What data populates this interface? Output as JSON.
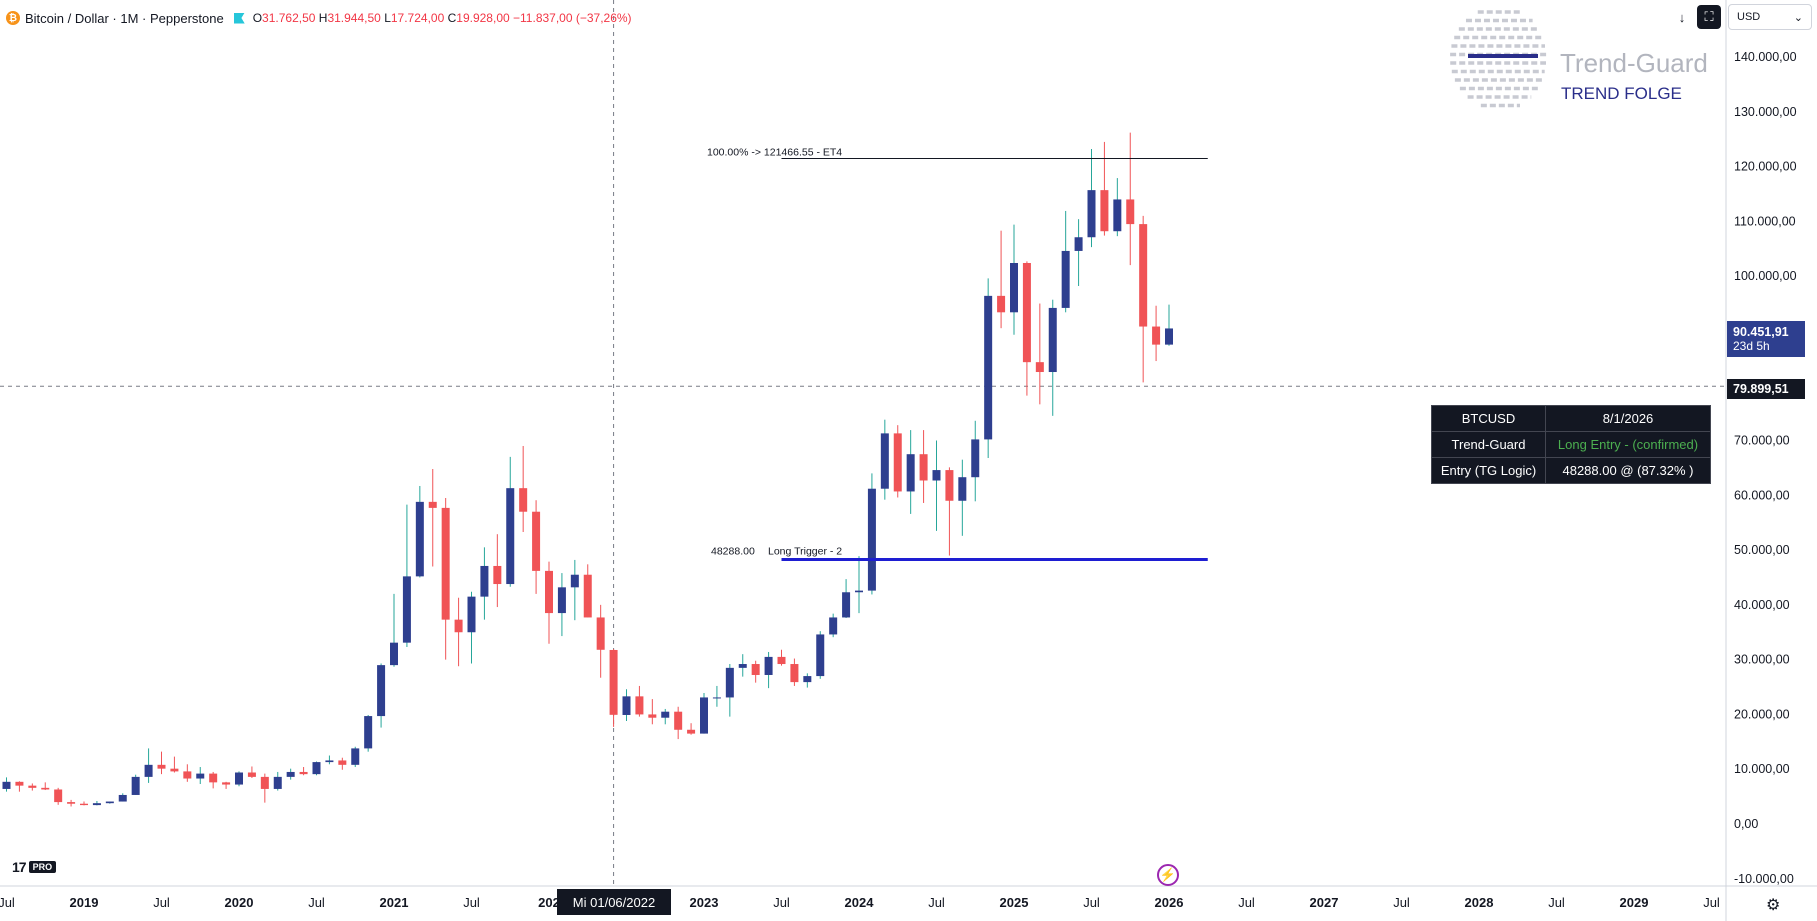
{
  "header": {
    "symbol_line": "Bitcoin / Dollar · 1M · Pepperstone",
    "coin_icon": "bitcoin-icon",
    "flag_icon": "flag-icon",
    "ohlc": {
      "o_label": "O",
      "o": "31.762,50",
      "h_label": "H",
      "h": "31.944,50",
      "l_label": "L",
      "l": "17.724,00",
      "c_label": "C",
      "c": "19.928,00",
      "change": "−11.837,00 (−37,26%)"
    }
  },
  "toolbar": {
    "download_icon": "down-arrow-icon",
    "fullscreen_icon": "fullscreen-icon",
    "currency_label": "USD"
  },
  "logo": {
    "name": "Trend-Guard",
    "tagline": "TREND FOLGE"
  },
  "price_labels": {
    "last_price": "90.451,91",
    "countdown": "23d 5h",
    "crosshair_price": "79.899,51"
  },
  "crosshair": {
    "date_label": "Mi 01/06/2022",
    "date": "2022-06-01",
    "price": 79899.51
  },
  "info_table": {
    "rows": [
      {
        "key": "BTCUSD",
        "value": "8/1/2026"
      },
      {
        "key": "Trend-Guard",
        "value": "Long Entry - (confirmed)"
      },
      {
        "key": "Entry (TG Logic)",
        "value": "48288.00 @ (87.32% )"
      }
    ]
  },
  "annotations": {
    "et4_label": "100.00% -> 121466.55 - ET4",
    "et4_price": 121466.55,
    "trigger_price_text": "48288.00",
    "trigger_label": "Long Trigger - 2",
    "trigger_price": 48288.0
  },
  "branding": {
    "tv_logo": "17",
    "tv_pro": "PRO",
    "bolt_icon": "lightning-icon",
    "settings_icon": "gear-icon"
  },
  "colors": {
    "up": "#2e3f8f",
    "down": "#f05356",
    "up_wick": "#26a69a",
    "down_wick": "#f05356",
    "trigger_line": "#1e1ed2",
    "last_price_bg": "#2e3f8f"
  },
  "chart_data": {
    "type": "candlestick",
    "title": "Bitcoin / Dollar · 1M · Pepperstone",
    "y_axis": {
      "ticks": [
        -10000,
        0,
        10000,
        20000,
        30000,
        40000,
        50000,
        60000,
        70000,
        100000,
        110000,
        120000,
        130000,
        140000
      ],
      "tick_labels": [
        "-10.000,00",
        "0,00",
        "10.000,00",
        "20.000,00",
        "30.000,00",
        "40.000,00",
        "50.000,00",
        "60.000,00",
        "70.000,00",
        "100.000,00",
        "110.000,00",
        "120.000,00",
        "130.000,00",
        "140.000,00"
      ],
      "range": [
        -12000,
        148000
      ]
    },
    "x_axis": {
      "ticks": [
        "2018-07",
        "2019-01",
        "2019-07",
        "2020-01",
        "2020-07",
        "2021-01",
        "2021-07",
        "2022-01",
        "2023-01",
        "2023-07",
        "2024-01",
        "2024-07",
        "2025-01",
        "2025-07",
        "2026-01",
        "2026-07",
        "2027-01",
        "2027-07",
        "2028-01",
        "2028-07",
        "2029-01",
        "2029-07"
      ],
      "tick_labels": [
        "Jul",
        "2019",
        "Jul",
        "2020",
        "Jul",
        "2021",
        "Jul",
        "202",
        "2023",
        "Jul",
        "2024",
        "Jul",
        "2025",
        "Jul",
        "2026",
        "Jul",
        "2027",
        "Jul",
        "2028",
        "Jul",
        "2029",
        "Jul"
      ]
    },
    "candles": [
      {
        "date": "2018-07",
        "o": 6400,
        "h": 8500,
        "l": 5900,
        "c": 7700
      },
      {
        "date": "2018-08",
        "o": 7700,
        "h": 7800,
        "l": 5900,
        "c": 7000
      },
      {
        "date": "2018-09",
        "o": 7000,
        "h": 7400,
        "l": 6100,
        "c": 6600
      },
      {
        "date": "2018-10",
        "o": 6600,
        "h": 7600,
        "l": 6200,
        "c": 6300
      },
      {
        "date": "2018-11",
        "o": 6300,
        "h": 6600,
        "l": 3500,
        "c": 4000
      },
      {
        "date": "2018-12",
        "o": 4000,
        "h": 4400,
        "l": 3200,
        "c": 3700
      },
      {
        "date": "2019-01",
        "o": 3700,
        "h": 4100,
        "l": 3400,
        "c": 3450
      },
      {
        "date": "2019-02",
        "o": 3450,
        "h": 4200,
        "l": 3400,
        "c": 3800
      },
      {
        "date": "2019-03",
        "o": 3800,
        "h": 4100,
        "l": 3700,
        "c": 4100
      },
      {
        "date": "2019-04",
        "o": 4100,
        "h": 5600,
        "l": 4100,
        "c": 5300
      },
      {
        "date": "2019-05",
        "o": 5300,
        "h": 9000,
        "l": 5300,
        "c": 8600
      },
      {
        "date": "2019-06",
        "o": 8600,
        "h": 13800,
        "l": 7500,
        "c": 10800
      },
      {
        "date": "2019-07",
        "o": 10800,
        "h": 13200,
        "l": 9100,
        "c": 10100
      },
      {
        "date": "2019-08",
        "o": 10100,
        "h": 12300,
        "l": 9400,
        "c": 9600
      },
      {
        "date": "2019-09",
        "o": 9600,
        "h": 10900,
        "l": 7700,
        "c": 8300
      },
      {
        "date": "2019-10",
        "o": 8300,
        "h": 10400,
        "l": 7300,
        "c": 9200
      },
      {
        "date": "2019-11",
        "o": 9200,
        "h": 9500,
        "l": 6500,
        "c": 7600
      },
      {
        "date": "2019-12",
        "o": 7600,
        "h": 7700,
        "l": 6400,
        "c": 7200
      },
      {
        "date": "2020-01",
        "o": 7200,
        "h": 9600,
        "l": 6900,
        "c": 9400
      },
      {
        "date": "2020-02",
        "o": 9400,
        "h": 10500,
        "l": 8400,
        "c": 8600
      },
      {
        "date": "2020-03",
        "o": 8600,
        "h": 9200,
        "l": 3900,
        "c": 6400
      },
      {
        "date": "2020-04",
        "o": 6400,
        "h": 9500,
        "l": 6100,
        "c": 8600
      },
      {
        "date": "2020-05",
        "o": 8600,
        "h": 10100,
        "l": 8100,
        "c": 9500
      },
      {
        "date": "2020-06",
        "o": 9500,
        "h": 10400,
        "l": 8900,
        "c": 9100
      },
      {
        "date": "2020-07",
        "o": 9100,
        "h": 11400,
        "l": 8900,
        "c": 11300
      },
      {
        "date": "2020-08",
        "o": 11300,
        "h": 12500,
        "l": 10900,
        "c": 11600
      },
      {
        "date": "2020-09",
        "o": 11600,
        "h": 12100,
        "l": 9900,
        "c": 10800
      },
      {
        "date": "2020-10",
        "o": 10800,
        "h": 14100,
        "l": 10400,
        "c": 13800
      },
      {
        "date": "2020-11",
        "o": 13800,
        "h": 19900,
        "l": 13200,
        "c": 19700
      },
      {
        "date": "2020-12",
        "o": 19700,
        "h": 29300,
        "l": 17600,
        "c": 29000
      },
      {
        "date": "2021-01",
        "o": 29000,
        "h": 42000,
        "l": 28700,
        "c": 33100
      },
      {
        "date": "2021-02",
        "o": 33100,
        "h": 58300,
        "l": 32300,
        "c": 45200
      },
      {
        "date": "2021-03",
        "o": 45200,
        "h": 61700,
        "l": 45000,
        "c": 58800
      },
      {
        "date": "2021-04",
        "o": 58800,
        "h": 64800,
        "l": 47000,
        "c": 57700
      },
      {
        "date": "2021-05",
        "o": 57700,
        "h": 59500,
        "l": 30000,
        "c": 37300
      },
      {
        "date": "2021-06",
        "o": 37300,
        "h": 41300,
        "l": 28800,
        "c": 35000
      },
      {
        "date": "2021-07",
        "o": 35000,
        "h": 42400,
        "l": 29300,
        "c": 41500
      },
      {
        "date": "2021-08",
        "o": 41500,
        "h": 50500,
        "l": 37300,
        "c": 47100
      },
      {
        "date": "2021-09",
        "o": 47100,
        "h": 52900,
        "l": 39600,
        "c": 43800
      },
      {
        "date": "2021-10",
        "o": 43800,
        "h": 67000,
        "l": 43300,
        "c": 61300
      },
      {
        "date": "2021-11",
        "o": 61300,
        "h": 69000,
        "l": 53300,
        "c": 57000
      },
      {
        "date": "2021-12",
        "o": 57000,
        "h": 59100,
        "l": 42000,
        "c": 46200
      },
      {
        "date": "2022-01",
        "o": 46200,
        "h": 47900,
        "l": 32900,
        "c": 38500
      },
      {
        "date": "2022-02",
        "o": 38500,
        "h": 45800,
        "l": 34300,
        "c": 43200
      },
      {
        "date": "2022-03",
        "o": 43200,
        "h": 48200,
        "l": 37200,
        "c": 45500
      },
      {
        "date": "2022-04",
        "o": 45500,
        "h": 47400,
        "l": 37700,
        "c": 37700
      },
      {
        "date": "2022-05",
        "o": 37700,
        "h": 40000,
        "l": 26700,
        "c": 31800
      },
      {
        "date": "2022-06",
        "o": 31762.5,
        "h": 31944.5,
        "l": 17724,
        "c": 19928
      },
      {
        "date": "2022-07",
        "o": 19900,
        "h": 24600,
        "l": 18800,
        "c": 23300
      },
      {
        "date": "2022-08",
        "o": 23300,
        "h": 25200,
        "l": 19600,
        "c": 20000
      },
      {
        "date": "2022-09",
        "o": 20000,
        "h": 22800,
        "l": 18200,
        "c": 19400
      },
      {
        "date": "2022-10",
        "o": 19400,
        "h": 21000,
        "l": 18200,
        "c": 20500
      },
      {
        "date": "2022-11",
        "o": 20500,
        "h": 21400,
        "l": 15500,
        "c": 17200
      },
      {
        "date": "2022-12",
        "o": 17200,
        "h": 18400,
        "l": 16300,
        "c": 16500
      },
      {
        "date": "2023-01",
        "o": 16500,
        "h": 23900,
        "l": 16500,
        "c": 23100
      },
      {
        "date": "2023-02",
        "o": 23100,
        "h": 25200,
        "l": 21400,
        "c": 23100
      },
      {
        "date": "2023-03",
        "o": 23100,
        "h": 29200,
        "l": 19600,
        "c": 28500
      },
      {
        "date": "2023-04",
        "o": 28500,
        "h": 31000,
        "l": 26900,
        "c": 29200
      },
      {
        "date": "2023-05",
        "o": 29200,
        "h": 29800,
        "l": 25800,
        "c": 27200
      },
      {
        "date": "2023-06",
        "o": 27200,
        "h": 31400,
        "l": 24800,
        "c": 30500
      },
      {
        "date": "2023-07",
        "o": 30500,
        "h": 31800,
        "l": 28900,
        "c": 29200
      },
      {
        "date": "2023-08",
        "o": 29200,
        "h": 30200,
        "l": 25200,
        "c": 25900
      },
      {
        "date": "2023-09",
        "o": 25900,
        "h": 27500,
        "l": 24900,
        "c": 27000
      },
      {
        "date": "2023-10",
        "o": 27000,
        "h": 35200,
        "l": 26500,
        "c": 34600
      },
      {
        "date": "2023-11",
        "o": 34600,
        "h": 38400,
        "l": 34100,
        "c": 37700
      },
      {
        "date": "2023-12",
        "o": 37700,
        "h": 44700,
        "l": 37600,
        "c": 42300
      },
      {
        "date": "2024-01",
        "o": 42300,
        "h": 48900,
        "l": 38500,
        "c": 42600
      },
      {
        "date": "2024-02",
        "o": 42600,
        "h": 64000,
        "l": 41900,
        "c": 61200
      },
      {
        "date": "2024-03",
        "o": 61200,
        "h": 73800,
        "l": 59200,
        "c": 71300
      },
      {
        "date": "2024-04",
        "o": 71300,
        "h": 72800,
        "l": 59600,
        "c": 60700
      },
      {
        "date": "2024-05",
        "o": 60700,
        "h": 71900,
        "l": 56600,
        "c": 67500
      },
      {
        "date": "2024-06",
        "o": 67500,
        "h": 71900,
        "l": 58600,
        "c": 62700
      },
      {
        "date": "2024-07",
        "o": 62700,
        "h": 70000,
        "l": 53500,
        "c": 64600
      },
      {
        "date": "2024-08",
        "o": 64600,
        "h": 65100,
        "l": 49000,
        "c": 59000
      },
      {
        "date": "2024-09",
        "o": 59000,
        "h": 66500,
        "l": 52600,
        "c": 63300
      },
      {
        "date": "2024-10",
        "o": 63300,
        "h": 73600,
        "l": 58900,
        "c": 70200
      },
      {
        "date": "2024-11",
        "o": 70200,
        "h": 99600,
        "l": 66800,
        "c": 96400
      },
      {
        "date": "2024-12",
        "o": 96400,
        "h": 108300,
        "l": 90500,
        "c": 93400
      },
      {
        "date": "2025-01",
        "o": 93400,
        "h": 109400,
        "l": 89300,
        "c": 102400
      },
      {
        "date": "2025-02",
        "o": 102400,
        "h": 102700,
        "l": 78200,
        "c": 84300
      },
      {
        "date": "2025-03",
        "o": 84300,
        "h": 95000,
        "l": 76600,
        "c": 82500
      },
      {
        "date": "2025-04",
        "o": 82500,
        "h": 95700,
        "l": 74500,
        "c": 94200
      },
      {
        "date": "2025-05",
        "o": 94200,
        "h": 111900,
        "l": 93400,
        "c": 104600
      },
      {
        "date": "2025-06",
        "o": 104600,
        "h": 110400,
        "l": 98200,
        "c": 107100
      },
      {
        "date": "2025-07",
        "o": 107100,
        "h": 123200,
        "l": 105300,
        "c": 115700
      },
      {
        "date": "2025-08",
        "o": 115700,
        "h": 124500,
        "l": 107400,
        "c": 108200
      },
      {
        "date": "2025-09",
        "o": 108200,
        "h": 117900,
        "l": 107300,
        "c": 114000
      },
      {
        "date": "2025-10",
        "o": 114000,
        "h": 126200,
        "l": 102000,
        "c": 109500
      },
      {
        "date": "2025-11",
        "o": 109500,
        "h": 111000,
        "l": 80600,
        "c": 90800
      },
      {
        "date": "2025-12",
        "o": 90800,
        "h": 94600,
        "l": 84500,
        "c": 87500
      },
      {
        "date": "2026-01",
        "o": 87500,
        "h": 94800,
        "l": 87300,
        "c": 90451.91
      }
    ]
  }
}
